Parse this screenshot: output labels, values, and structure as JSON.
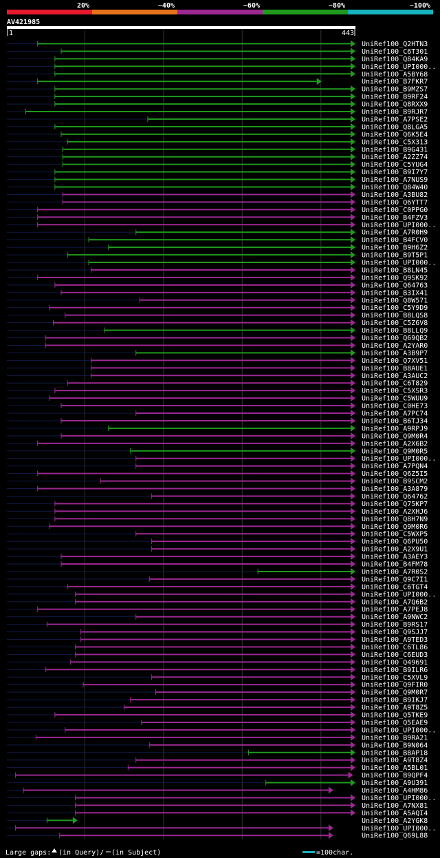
{
  "chart_data": {
    "type": "alignment-overview",
    "query_id": "AV421985",
    "query_range": {
      "start": 1,
      "end": 443
    },
    "identity_legend": [
      {
        "label": "20%",
        "color": "#e8192d"
      },
      {
        "label": "~40%",
        "color": "#e8731b"
      },
      {
        "label": "~60%",
        "color": "#9c2892"
      },
      {
        "label": "~80%",
        "color": "#1f9a1d"
      },
      {
        "label": "~100%",
        "color": "#15b3c0"
      }
    ],
    "footer": {
      "gaps_text": "Large gaps:",
      "query_gap": "(in Query)/",
      "subject_gap": "(in Subject)",
      "scale_text": "=100char."
    },
    "rows": [
      {
        "label": "UniRef100_Q2HTN3",
        "start": 40,
        "end": 460,
        "id": 80,
        "arrow": "r"
      },
      {
        "label": "UniRef100_C6T301",
        "start": 70,
        "end": 460,
        "id": 80,
        "arrow": "r"
      },
      {
        "label": "UniRef100_Q84KA9",
        "start": 62,
        "end": 460,
        "id": 80,
        "arrow": "r"
      },
      {
        "label": "UniRef100_UPI000..",
        "start": 62,
        "end": 460,
        "id": 80,
        "arrow": "r"
      },
      {
        "label": "UniRef100_A5BY68",
        "start": 62,
        "end": 460,
        "id": 80,
        "arrow": "r"
      },
      {
        "label": "UniRef100_B7FKR7",
        "start": 40,
        "end": 400,
        "id": 80,
        "arrow": "r"
      },
      {
        "label": "UniRef100_B9MZS7",
        "start": 62,
        "end": 460,
        "id": 80,
        "arrow": "r"
      },
      {
        "label": "UniRef100_B9RF24",
        "start": 62,
        "end": 460,
        "id": 80,
        "arrow": "r"
      },
      {
        "label": "UniRef100_Q8RXX9",
        "start": 62,
        "end": 460,
        "id": 80,
        "arrow": "r"
      },
      {
        "label": "UniRef100_B9RJR7",
        "start": 25,
        "end": 460,
        "id": 80,
        "arrow": "r"
      },
      {
        "label": "UniRef100_A7PSE2",
        "start": 180,
        "end": 460,
        "id": 80,
        "arrow": "r"
      },
      {
        "label": "UniRef100_Q8LGA5",
        "start": 62,
        "end": 460,
        "id": 80,
        "arrow": "r"
      },
      {
        "label": "UniRef100_Q6K5E4",
        "start": 70,
        "end": 460,
        "id": 80,
        "arrow": "r"
      },
      {
        "label": "UniRef100_C5X313",
        "start": 78,
        "end": 460,
        "id": 80,
        "arrow": "r"
      },
      {
        "label": "UniRef100_B9G431",
        "start": 72,
        "end": 460,
        "id": 80,
        "arrow": "r"
      },
      {
        "label": "UniRef100_A2ZZ74",
        "start": 72,
        "end": 460,
        "id": 80,
        "arrow": "r"
      },
      {
        "label": "UniRef100_C5YUG4",
        "start": 72,
        "end": 460,
        "id": 80,
        "arrow": "r"
      },
      {
        "label": "UniRef100_B9I7Y7",
        "start": 62,
        "end": 460,
        "id": 80,
        "arrow": "r"
      },
      {
        "label": "UniRef100_A7NUS9",
        "start": 62,
        "end": 460,
        "id": 80,
        "arrow": "r"
      },
      {
        "label": "UniRef100_Q84W40",
        "start": 62,
        "end": 460,
        "id": 80,
        "arrow": "r"
      },
      {
        "label": "UniRef100_A3BU82",
        "start": 72,
        "end": 460,
        "id": 60,
        "arrow": "r"
      },
      {
        "label": "UniRef100_Q6YTT7",
        "start": 72,
        "end": 460,
        "id": 60,
        "arrow": "r"
      },
      {
        "label": "UniRef100_C0PPG0",
        "start": 40,
        "end": 460,
        "id": 60,
        "arrow": "r"
      },
      {
        "label": "UniRef100_B4FZV3",
        "start": 40,
        "end": 460,
        "id": 60,
        "arrow": "r"
      },
      {
        "label": "UniRef100_UPI000..",
        "start": 40,
        "end": 460,
        "id": 60,
        "arrow": "r"
      },
      {
        "label": "UniRef100_A7R0H9",
        "start": 165,
        "end": 460,
        "id": 80,
        "arrow": "r"
      },
      {
        "label": "UniRef100_B4FCV0",
        "start": 105,
        "end": 460,
        "id": 80,
        "arrow": "r"
      },
      {
        "label": "UniRef100_B9H6Z2",
        "start": 130,
        "end": 460,
        "id": 80,
        "arrow": "r"
      },
      {
        "label": "UniRef100_B9T5P1",
        "start": 78,
        "end": 460,
        "id": 80,
        "arrow": "r"
      },
      {
        "label": "UniRef100_UPI000..",
        "start": 105,
        "end": 460,
        "id": 80,
        "arrow": "r"
      },
      {
        "label": "UniRef100_B8LN45",
        "start": 108,
        "end": 460,
        "id": 60,
        "arrow": "r"
      },
      {
        "label": "UniRef100_Q9SK92",
        "start": 40,
        "end": 460,
        "id": 60,
        "arrow": "r"
      },
      {
        "label": "UniRef100_Q64763",
        "start": 62,
        "end": 460,
        "id": 60,
        "arrow": "r"
      },
      {
        "label": "UniRef100_B3IX41",
        "start": 70,
        "end": 460,
        "id": 60,
        "arrow": "r"
      },
      {
        "label": "UniRef100_Q8W571",
        "start": 170,
        "end": 460,
        "id": 60,
        "arrow": "r"
      },
      {
        "label": "UniRef100_C5Y9D9",
        "start": 55,
        "end": 460,
        "id": 60,
        "arrow": "r"
      },
      {
        "label": "UniRef100_B8LQS8",
        "start": 75,
        "end": 460,
        "id": 60,
        "arrow": "r"
      },
      {
        "label": "UniRef100_C5Z6V8",
        "start": 60,
        "end": 460,
        "id": 60,
        "arrow": "r"
      },
      {
        "label": "UniRef100_B8LLQ9",
        "start": 125,
        "end": 460,
        "id": 80,
        "arrow": "r"
      },
      {
        "label": "UniRef100_Q69QB2",
        "start": 50,
        "end": 460,
        "id": 60,
        "arrow": "r"
      },
      {
        "label": "UniRef100_A2YAR0",
        "start": 50,
        "end": 460,
        "id": 60,
        "arrow": "r"
      },
      {
        "label": "UniRef100_A3B9P7",
        "start": 165,
        "end": 460,
        "id": 80,
        "arrow": "r"
      },
      {
        "label": "UniRef100_Q7XV51",
        "start": 108,
        "end": 460,
        "id": 60,
        "arrow": "r"
      },
      {
        "label": "UniRef100_B8AUE1",
        "start": 108,
        "end": 460,
        "id": 60,
        "arrow": "r"
      },
      {
        "label": "UniRef100_A3AUC2",
        "start": 108,
        "end": 460,
        "id": 60,
        "arrow": "r"
      },
      {
        "label": "UniRef100_C6T829",
        "start": 78,
        "end": 460,
        "id": 60,
        "arrow": "r"
      },
      {
        "label": "UniRef100_C5XSR3",
        "start": 62,
        "end": 460,
        "id": 60,
        "arrow": "r"
      },
      {
        "label": "UniRef100_C5WUU9",
        "start": 55,
        "end": 460,
        "id": 60,
        "arrow": "r"
      },
      {
        "label": "UniRef100_C0HE73",
        "start": 70,
        "end": 460,
        "id": 60,
        "arrow": "r"
      },
      {
        "label": "UniRef100_A7PC74",
        "start": 165,
        "end": 460,
        "id": 60,
        "arrow": "r"
      },
      {
        "label": "UniRef100_B6TJ34",
        "start": 70,
        "end": 460,
        "id": 60,
        "arrow": "r"
      },
      {
        "label": "UniRef100_A9RPJ9",
        "start": 130,
        "end": 460,
        "id": 80,
        "arrow": "r"
      },
      {
        "label": "UniRef100_Q9M0R4",
        "start": 70,
        "end": 455,
        "id": 60,
        "arrow": "r"
      },
      {
        "label": "UniRef100_A2X6B2",
        "start": 40,
        "end": 460,
        "id": 60,
        "arrow": "r"
      },
      {
        "label": "UniRef100_Q9M0R5",
        "start": 158,
        "end": 455,
        "id": 80,
        "arrow": "r"
      },
      {
        "label": "UniRef100_UPI000..",
        "start": 165,
        "end": 460,
        "id": 60,
        "arrow": "r"
      },
      {
        "label": "UniRef100_A7PQN4",
        "start": 165,
        "end": 460,
        "id": 60,
        "arrow": "r"
      },
      {
        "label": "UniRef100_Q6Z5I5",
        "start": 40,
        "end": 460,
        "id": 60,
        "arrow": "r"
      },
      {
        "label": "UniRef100_B9SCM2",
        "start": 120,
        "end": 460,
        "id": 60,
        "arrow": "r"
      },
      {
        "label": "UniRef100_A3A879",
        "start": 40,
        "end": 460,
        "id": 60,
        "arrow": "r"
      },
      {
        "label": "UniRef100_Q64762",
        "start": 185,
        "end": 460,
        "id": 60,
        "arrow": "r"
      },
      {
        "label": "UniRef100_Q75KP7",
        "start": 62,
        "end": 460,
        "id": 60,
        "arrow": "r"
      },
      {
        "label": "UniRef100_A2XHJ6",
        "start": 62,
        "end": 460,
        "id": 60,
        "arrow": "r"
      },
      {
        "label": "UniRef100_Q8H7N9",
        "start": 62,
        "end": 460,
        "id": 60,
        "arrow": "r"
      },
      {
        "label": "UniRef100_Q9M0R6",
        "start": 55,
        "end": 455,
        "id": 60,
        "arrow": "r"
      },
      {
        "label": "UniRef100_C5WXP5",
        "start": 165,
        "end": 460,
        "id": 60,
        "arrow": "r"
      },
      {
        "label": "UniRef100_Q6PU50",
        "start": 185,
        "end": 460,
        "id": 60,
        "arrow": "r"
      },
      {
        "label": "UniRef100_A2X9U1",
        "start": 185,
        "end": 460,
        "id": 60,
        "arrow": "r"
      },
      {
        "label": "UniRef100_A3AEY3",
        "start": 70,
        "end": 460,
        "id": 60,
        "arrow": "r"
      },
      {
        "label": "UniRef100_B4FM78",
        "start": 70,
        "end": 460,
        "id": 60,
        "arrow": "r"
      },
      {
        "label": "UniRef100_A7R0S2",
        "start": 320,
        "end": 460,
        "id": 80,
        "arrow": "r"
      },
      {
        "label": "UniRef100_Q9C7I1",
        "start": 182,
        "end": 460,
        "id": 60,
        "arrow": "r"
      },
      {
        "label": "UniRef100_C6TGT4",
        "start": 78,
        "end": 460,
        "id": 60,
        "arrow": "r"
      },
      {
        "label": "UniRef100_UPI000..",
        "start": 88,
        "end": 460,
        "id": 60,
        "arrow": "r"
      },
      {
        "label": "UniRef100_A7Q6B2",
        "start": 88,
        "end": 460,
        "id": 60,
        "arrow": "r"
      },
      {
        "label": "UniRef100_A7PEJ8",
        "start": 40,
        "end": 460,
        "id": 60,
        "arrow": "r"
      },
      {
        "label": "UniRef100_A9NWC2",
        "start": 165,
        "end": 460,
        "id": 60,
        "arrow": "r"
      },
      {
        "label": "UniRef100_B9RS17",
        "start": 52,
        "end": 460,
        "id": 60,
        "arrow": "r"
      },
      {
        "label": "UniRef100_Q9SJJ7",
        "start": 95,
        "end": 460,
        "id": 60,
        "arrow": "r"
      },
      {
        "label": "UniRef100_A9TED3",
        "start": 95,
        "end": 460,
        "id": 60,
        "arrow": "r"
      },
      {
        "label": "UniRef100_C6TL86",
        "start": 88,
        "end": 460,
        "id": 60,
        "arrow": "r"
      },
      {
        "label": "UniRef100_C6EUD3",
        "start": 88,
        "end": 460,
        "id": 60,
        "arrow": "r"
      },
      {
        "label": "UniRef100_Q49691",
        "start": 82,
        "end": 460,
        "id": 60,
        "arrow": "r"
      },
      {
        "label": "UniRef100_B9ILR6",
        "start": 50,
        "end": 460,
        "id": 60,
        "arrow": "r"
      },
      {
        "label": "UniRef100_C5XVL9",
        "start": 185,
        "end": 460,
        "id": 60,
        "arrow": "r"
      },
      {
        "label": "UniRef100_Q9FIR0",
        "start": 98,
        "end": 452,
        "id": 60,
        "arrow": "r"
      },
      {
        "label": "UniRef100_Q9M0R7",
        "start": 190,
        "end": 460,
        "id": 60,
        "arrow": "r"
      },
      {
        "label": "UniRef100_B9IKJ7",
        "start": 158,
        "end": 460,
        "id": 60,
        "arrow": "r"
      },
      {
        "label": "UniRef100_A9T8Z5",
        "start": 150,
        "end": 460,
        "id": 60,
        "arrow": "r"
      },
      {
        "label": "UniRef100_Q5TKE9",
        "start": 62,
        "end": 460,
        "id": 60,
        "arrow": "r"
      },
      {
        "label": "UniRef100_Q5EAE9",
        "start": 172,
        "end": 460,
        "id": 60,
        "arrow": "r"
      },
      {
        "label": "UniRef100_UPI000..",
        "start": 75,
        "end": 460,
        "id": 60,
        "arrow": "r"
      },
      {
        "label": "UniRef100_B9RA21",
        "start": 38,
        "end": 460,
        "id": 60,
        "arrow": "r"
      },
      {
        "label": "UniRef100_B9N064",
        "start": 182,
        "end": 460,
        "id": 60,
        "arrow": "r"
      },
      {
        "label": "UniRef100_B8AP18",
        "start": 308,
        "end": 460,
        "id": 80,
        "arrow": "r"
      },
      {
        "label": "UniRef100_A9T8Z4",
        "start": 165,
        "end": 460,
        "id": 60,
        "arrow": "r"
      },
      {
        "label": "UniRef100_A5BL01",
        "start": 155,
        "end": 460,
        "id": 60,
        "arrow": "r"
      },
      {
        "label": "UniRef100_B9QPF4",
        "start": 12,
        "end": 440,
        "id": 60,
        "arrow": "r"
      },
      {
        "label": "UniRef100_A9U391",
        "start": 330,
        "end": 460,
        "id": 80,
        "arrow": "r"
      },
      {
        "label": "UniRef100_A4HM86",
        "start": 22,
        "end": 415,
        "id": 60,
        "arrow": "r"
      },
      {
        "label": "UniRef100_UPI000..",
        "start": 88,
        "end": 460,
        "id": 60,
        "arrow": "r"
      },
      {
        "label": "UniRef100_A7NX81",
        "start": 88,
        "end": 460,
        "id": 60,
        "arrow": "r"
      },
      {
        "label": "UniRef100_A5AQI4",
        "start": 88,
        "end": 460,
        "id": 60,
        "arrow": "r"
      },
      {
        "label": "UniRef100_A2YGK8",
        "start": 52,
        "end": 90,
        "id": 80,
        "arrow": "r"
      },
      {
        "label": "UniRef100_UPI000..",
        "start": 12,
        "end": 415,
        "id": 60,
        "arrow": "r"
      },
      {
        "label": "UniRef100_Q69L88",
        "start": 68,
        "end": 415,
        "id": 60,
        "arrow": "r"
      }
    ]
  }
}
